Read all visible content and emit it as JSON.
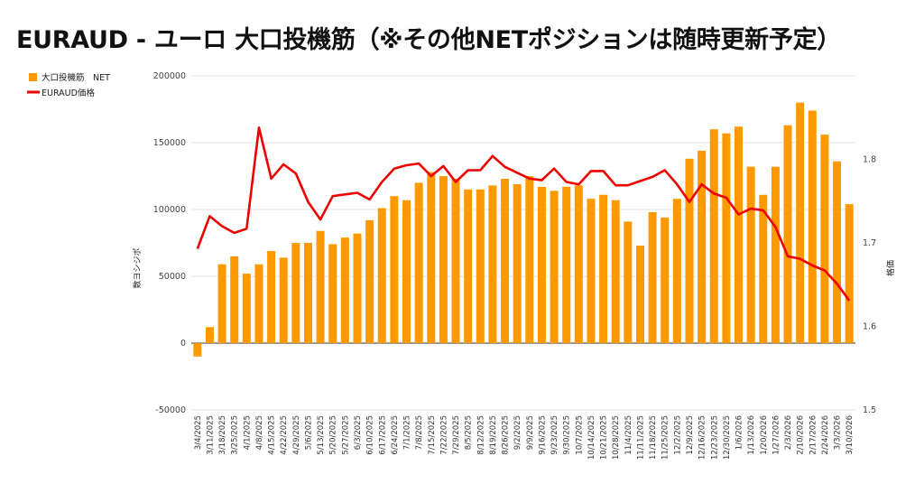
{
  "title": "EURAUD - ユーロ 大口投機筋（※その他NETポジションは随時更新予定）",
  "chart_data": {
    "type": "bar",
    "title": "EURAUD - ユーロ 大口投機筋（※その他NETポジションは随時更新予定）",
    "ylabel": "数ヨシジポ",
    "y2label": "格価",
    "ylim": [
      -50000,
      200000
    ],
    "y2lim": [
      1.5,
      1.9
    ],
    "yticks": [
      "200000",
      "150000",
      "100000",
      "50000",
      "0",
      "-50000"
    ],
    "y2ticks": [
      "1.8",
      "1.7",
      "1.6",
      "1.5"
    ],
    "grid": true,
    "legend_position": "top-left",
    "categories": [
      "3/4/2025",
      "3/11/2025",
      "3/18/2025",
      "3/25/2025",
      "4/1/2025",
      "4/8/2025",
      "4/15/2025",
      "4/22/2025",
      "4/29/2025",
      "5/6/2025",
      "5/13/2025",
      "5/20/2025",
      "5/27/2025",
      "6/3/2025",
      "6/10/2025",
      "6/17/2025",
      "6/24/2025",
      "7/1/2025",
      "7/8/2025",
      "7/15/2025",
      "7/22/2025",
      "7/29/2025",
      "8/5/2025",
      "8/12/2025",
      "8/19/2025",
      "8/26/2025",
      "9/2/2025",
      "9/9/2025",
      "9/16/2025",
      "9/23/2025",
      "9/30/2025",
      "10/7/2025",
      "10/14/2025",
      "10/21/2025",
      "10/28/2025",
      "11/4/2025",
      "11/11/2025",
      "11/18/2025",
      "11/25/2025",
      "12/2/2025",
      "12/9/2025",
      "12/16/2025",
      "12/23/2025",
      "12/30/2025",
      "1/6/2026",
      "1/13/2026",
      "1/20/2026",
      "1/27/2026",
      "2/3/2026",
      "2/10/2026",
      "2/17/2026",
      "2/24/2026",
      "3/3/2026",
      "3/10/2026"
    ],
    "series": [
      {
        "name": "大口投機筋　NET",
        "type": "bar",
        "axis": "left",
        "color": "#ff9900",
        "values": [
          -10000,
          12000,
          59000,
          65000,
          52000,
          59000,
          69000,
          64000,
          75000,
          75000,
          84000,
          74000,
          79000,
          82000,
          92000,
          101000,
          110000,
          107000,
          120000,
          128000,
          125000,
          123000,
          115000,
          115000,
          118000,
          123000,
          119000,
          125000,
          117000,
          114000,
          117000,
          118000,
          108000,
          111000,
          107000,
          91000,
          73000,
          98000,
          94000,
          108000,
          138000,
          144000,
          160000,
          157000,
          162000,
          132000,
          111000,
          132000,
          163000,
          180000,
          174000,
          156000,
          136000,
          104000
        ]
      },
      {
        "name": "EURAUD価格",
        "type": "line",
        "axis": "right",
        "color": "#ee0000",
        "values": [
          1.693,
          1.732,
          1.72,
          1.712,
          1.717,
          1.838,
          1.777,
          1.794,
          1.783,
          1.749,
          1.728,
          1.756,
          1.758,
          1.76,
          1.752,
          1.773,
          1.789,
          1.793,
          1.795,
          1.78,
          1.792,
          1.773,
          1.787,
          1.787,
          1.804,
          1.791,
          1.784,
          1.777,
          1.775,
          1.789,
          1.773,
          1.77,
          1.786,
          1.786,
          1.769,
          1.769,
          1.774,
          1.779,
          1.787,
          1.77,
          1.749,
          1.77,
          1.759,
          1.754,
          1.734,
          1.741,
          1.739,
          1.719,
          1.684,
          1.681,
          1.673,
          1.667,
          1.651,
          1.631
        ]
      }
    ]
  }
}
